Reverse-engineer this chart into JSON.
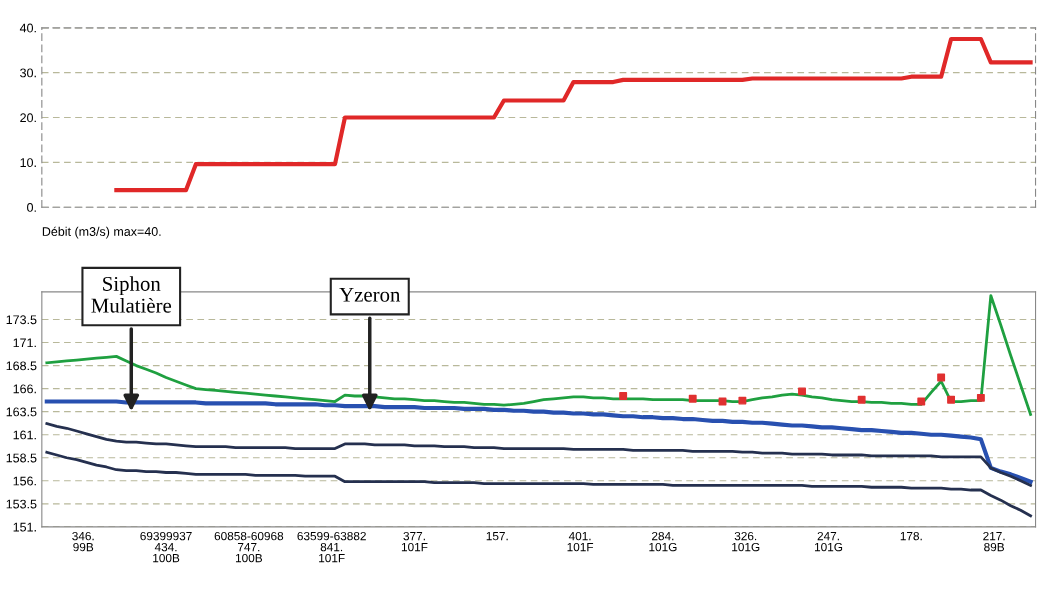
{
  "chart_data": [
    {
      "type": "line",
      "xlabel": "Débit (m3/s) max=40.",
      "categories": [
        null,
        null,
        null,
        null,
        null,
        null,
        null,
        null,
        null,
        null,
        null,
        null,
        null,
        null,
        null,
        null,
        null,
        null,
        null,
        null,
        null,
        null,
        null,
        null,
        null,
        null,
        null,
        null,
        null,
        null,
        null,
        null,
        null,
        null,
        null,
        null,
        null,
        null,
        null,
        null,
        null,
        null,
        null,
        null,
        null,
        null,
        null,
        null,
        null,
        null,
        null,
        null,
        null,
        null,
        null,
        null,
        null,
        null,
        null,
        null,
        null,
        null,
        null,
        null,
        null,
        null,
        null,
        null,
        null,
        null,
        null,
        null,
        null,
        null,
        null,
        null,
        null,
        null,
        null,
        null,
        null,
        null,
        null,
        null,
        null,
        null,
        null,
        null,
        null,
        null,
        null,
        null,
        null,
        null,
        null,
        null,
        null,
        null,
        null,
        null
      ],
      "series": [
        {
          "color": "#e02828",
          "values": [
            null,
            null,
            null,
            null,
            null,
            null,
            null,
            3.8,
            3.8,
            3.8,
            3.8,
            3.8,
            3.8,
            3.8,
            3.8,
            9.6,
            9.6,
            9.6,
            9.6,
            9.6,
            9.6,
            9.6,
            9.6,
            9.6,
            9.6,
            9.6,
            9.6,
            9.6,
            9.6,
            9.6,
            20,
            20,
            20,
            20,
            20,
            20,
            20,
            20,
            20,
            20,
            20,
            20,
            20,
            20,
            20,
            20,
            23.8,
            23.8,
            23.8,
            23.8,
            23.8,
            23.8,
            23.8,
            27.9,
            27.9,
            27.9,
            27.9,
            27.9,
            28.4,
            28.4,
            28.4,
            28.4,
            28.4,
            28.4,
            28.4,
            28.4,
            28.4,
            28.4,
            28.4,
            28.4,
            28.4,
            28.7,
            28.7,
            28.7,
            28.7,
            28.7,
            28.7,
            28.7,
            28.7,
            28.7,
            28.7,
            28.7,
            28.7,
            28.7,
            28.7,
            28.7,
            28.7,
            29.1,
            29.1,
            29.1,
            29.1,
            37.5,
            37.5,
            37.5,
            37.5,
            32.3,
            32.3,
            32.3,
            32.3,
            32.3
          ]
        }
      ],
      "ylim": [
        0,
        40
      ],
      "yticks": [
        {
          "value": 0,
          "label": "0."
        },
        {
          "value": 10,
          "label": "10."
        },
        {
          "value": 20,
          "label": "20."
        },
        {
          "value": 30,
          "label": "30."
        },
        {
          "value": 40,
          "label": "40."
        }
      ],
      "grid": "y"
    },
    {
      "type": "line",
      "categories": [
        null,
        null,
        null,
        null,
        null,
        null,
        null,
        null,
        null,
        null,
        null,
        null,
        null,
        null,
        null,
        null,
        null,
        null,
        null,
        null,
        null,
        null,
        null,
        null,
        null,
        null,
        null,
        null,
        null,
        null,
        null,
        null,
        null,
        null,
        null,
        null,
        null,
        null,
        null,
        null,
        null,
        null,
        null,
        null,
        null,
        null,
        null,
        null,
        null,
        null,
        null,
        null,
        null,
        null,
        null,
        null,
        null,
        null,
        null,
        null,
        null,
        null,
        null,
        null,
        null,
        null,
        null,
        null,
        null,
        null,
        null,
        null,
        null,
        null,
        null,
        null,
        null,
        null,
        null,
        null,
        null,
        null,
        null,
        null,
        null,
        null,
        null,
        null,
        null,
        null,
        null,
        null,
        null,
        null,
        null,
        null,
        null,
        null,
        null,
        null
      ],
      "series": [
        {
          "color": "#1fa040",
          "values": [
            168.8,
            168.9,
            169.0,
            169.1,
            169.2,
            169.3,
            169.4,
            169.5,
            169.0,
            168.5,
            168.1,
            167.7,
            167.2,
            166.8,
            166.4,
            166.0,
            165.9,
            165.8,
            165.7,
            165.6,
            165.5,
            165.4,
            165.3,
            165.2,
            165.1,
            165.0,
            164.9,
            164.8,
            164.7,
            164.6,
            165.3,
            165.2,
            165.2,
            165.1,
            165.0,
            164.9,
            164.9,
            164.8,
            164.7,
            164.7,
            164.6,
            164.5,
            164.5,
            164.4,
            164.3,
            164.3,
            164.2,
            164.3,
            164.4,
            164.6,
            164.8,
            164.9,
            165.0,
            165.1,
            165.1,
            165.0,
            165.0,
            164.9,
            164.9,
            164.9,
            164.9,
            164.8,
            164.8,
            164.8,
            164.8,
            164.7,
            164.7,
            164.7,
            164.7,
            164.6,
            164.6,
            164.8,
            165.0,
            165.1,
            165.3,
            165.4,
            165.3,
            165.1,
            165.0,
            164.8,
            164.7,
            164.6,
            164.6,
            164.5,
            164.5,
            164.4,
            164.4,
            164.3,
            164.3,
            165.6,
            166.8,
            164.6,
            164.6,
            164.7,
            164.7,
            176.1,
            172.9,
            169.6,
            166.4,
            163.2
          ]
        },
        {
          "color": "#2850b0",
          "values": [
            164.6,
            164.6,
            164.6,
            164.6,
            164.6,
            164.6,
            164.6,
            164.6,
            164.5,
            164.5,
            164.5,
            164.5,
            164.5,
            164.5,
            164.5,
            164.5,
            164.4,
            164.4,
            164.4,
            164.4,
            164.4,
            164.4,
            164.4,
            164.3,
            164.3,
            164.3,
            164.3,
            164.3,
            164.2,
            164.2,
            164.1,
            164.1,
            164.1,
            164.1,
            164.0,
            164.0,
            164.0,
            164.0,
            163.9,
            163.9,
            163.9,
            163.9,
            163.8,
            163.8,
            163.8,
            163.7,
            163.7,
            163.6,
            163.6,
            163.5,
            163.5,
            163.4,
            163.4,
            163.3,
            163.3,
            163.2,
            163.2,
            163.1,
            163.0,
            163.0,
            162.9,
            162.9,
            162.8,
            162.8,
            162.7,
            162.7,
            162.6,
            162.5,
            162.5,
            162.4,
            162.4,
            162.3,
            162.3,
            162.2,
            162.1,
            162.0,
            162.0,
            161.9,
            161.8,
            161.8,
            161.7,
            161.6,
            161.5,
            161.5,
            161.4,
            161.3,
            161.2,
            161.2,
            161.1,
            161.0,
            161.0,
            160.9,
            160.8,
            160.7,
            160.5,
            157.4,
            157.0,
            156.7,
            156.3,
            155.9
          ]
        },
        {
          "color": "#25304f",
          "values": [
            162.2,
            161.9,
            161.7,
            161.4,
            161.1,
            160.8,
            160.5,
            160.3,
            160.2,
            160.2,
            160.1,
            160.0,
            160.0,
            159.9,
            159.8,
            159.7,
            159.7,
            159.7,
            159.7,
            159.6,
            159.6,
            159.6,
            159.6,
            159.6,
            159.6,
            159.5,
            159.5,
            159.5,
            159.5,
            159.5,
            160.0,
            160.0,
            160.0,
            159.9,
            159.9,
            159.9,
            159.9,
            159.8,
            159.8,
            159.8,
            159.7,
            159.7,
            159.7,
            159.6,
            159.6,
            159.6,
            159.5,
            159.5,
            159.5,
            159.5,
            159.5,
            159.5,
            159.5,
            159.4,
            159.4,
            159.4,
            159.4,
            159.4,
            159.4,
            159.3,
            159.3,
            159.3,
            159.3,
            159.3,
            159.3,
            159.2,
            159.2,
            159.2,
            159.2,
            159.2,
            159.1,
            159.1,
            159.0,
            159.0,
            159.0,
            158.9,
            158.9,
            158.9,
            158.9,
            158.8,
            158.8,
            158.8,
            158.8,
            158.7,
            158.7,
            158.7,
            158.7,
            158.7,
            158.7,
            158.7,
            158.6,
            158.6,
            158.6,
            158.6,
            158.6,
            157.4,
            156.9,
            156.5,
            156.0,
            155.5
          ]
        },
        {
          "color": "#25304f",
          "values": [
            159.1,
            158.8,
            158.5,
            158.3,
            158.0,
            157.7,
            157.5,
            157.2,
            157.1,
            157.1,
            157.0,
            157.0,
            156.9,
            156.9,
            156.8,
            156.7,
            156.7,
            156.7,
            156.7,
            156.7,
            156.7,
            156.6,
            156.6,
            156.6,
            156.6,
            156.6,
            156.5,
            156.5,
            156.5,
            156.5,
            155.9,
            155.9,
            155.9,
            155.9,
            155.9,
            155.9,
            155.9,
            155.9,
            155.9,
            155.8,
            155.8,
            155.8,
            155.8,
            155.8,
            155.7,
            155.7,
            155.7,
            155.7,
            155.7,
            155.7,
            155.7,
            155.7,
            155.7,
            155.7,
            155.7,
            155.6,
            155.6,
            155.6,
            155.6,
            155.6,
            155.6,
            155.6,
            155.6,
            155.5,
            155.5,
            155.5,
            155.5,
            155.5,
            155.5,
            155.5,
            155.5,
            155.5,
            155.5,
            155.5,
            155.5,
            155.5,
            155.5,
            155.4,
            155.4,
            155.4,
            155.4,
            155.4,
            155.4,
            155.3,
            155.3,
            155.3,
            155.3,
            155.2,
            155.2,
            155.2,
            155.2,
            155.1,
            155.1,
            155.0,
            155.0,
            154.4,
            153.9,
            153.3,
            152.8,
            152.2
          ]
        },
        {
          "type": "scatter",
          "marker": "square",
          "color": "#e03030",
          "values": [
            null,
            null,
            null,
            null,
            null,
            null,
            null,
            null,
            null,
            null,
            null,
            null,
            null,
            null,
            null,
            null,
            null,
            null,
            null,
            null,
            null,
            null,
            null,
            null,
            null,
            null,
            null,
            null,
            null,
            null,
            null,
            null,
            null,
            null,
            null,
            null,
            null,
            null,
            null,
            null,
            null,
            null,
            null,
            null,
            null,
            null,
            null,
            null,
            null,
            null,
            null,
            null,
            null,
            null,
            null,
            null,
            null,
            null,
            165.2,
            null,
            null,
            null,
            null,
            null,
            null,
            164.9,
            null,
            null,
            164.6,
            null,
            164.7,
            null,
            null,
            null,
            null,
            null,
            165.7,
            null,
            null,
            null,
            null,
            null,
            164.8,
            null,
            null,
            null,
            null,
            null,
            164.6,
            null,
            167.2,
            164.8,
            null,
            null,
            165.0,
            null,
            null,
            null,
            null,
            null
          ]
        }
      ],
      "ylim": [
        151,
        176.5
      ],
      "yticks": [
        {
          "value": 151,
          "label": "151."
        },
        {
          "value": 153.5,
          "label": "153.5"
        },
        {
          "value": 156,
          "label": "156."
        },
        {
          "value": 158.5,
          "label": "158.5"
        },
        {
          "value": 161,
          "label": "161."
        },
        {
          "value": 163.5,
          "label": "163.5"
        },
        {
          "value": 166,
          "label": "166."
        },
        {
          "value": 168.5,
          "label": "168.5"
        },
        {
          "value": 171,
          "label": "171."
        },
        {
          "value": 173.5,
          "label": "173.5"
        }
      ],
      "grid": "y",
      "annotations": [
        "Siphon\nMulatière",
        "Yzeron",
        "346.\n99B",
        "69399937\n434.\n100B",
        "60858-60968\n747.\n100B",
        "63599-63882\n841.\n101F",
        "377.\n101F",
        "157.",
        "401.\n101F",
        "284.\n101G",
        "326.\n101G",
        "247.\n101G",
        "178.",
        "217.\n89B"
      ]
    }
  ]
}
